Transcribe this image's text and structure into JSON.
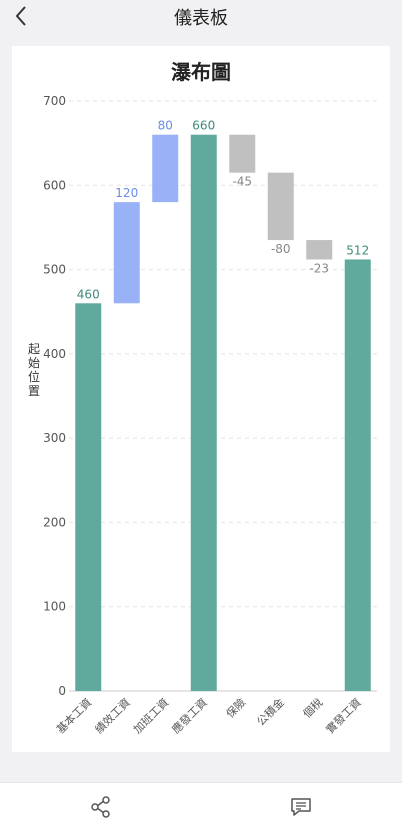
{
  "header": {
    "title": "儀表板",
    "back_icon": "chevron-left-icon"
  },
  "footer": {
    "share_icon": "share-icon",
    "comment_icon": "comment-icon"
  },
  "colors": {
    "total": "#5faa9c",
    "increase": "#98b1f7",
    "decrease": "#c0c0c0"
  },
  "chart_data": {
    "type": "bar",
    "subtype": "waterfall",
    "title": "瀑布圖",
    "xlabel": "",
    "ylabel": "起始位置",
    "ylim": [
      0,
      700
    ],
    "yticks": [
      0,
      100,
      200,
      300,
      400,
      500,
      600,
      700
    ],
    "grid": true,
    "categories": [
      "基本工資",
      "績效工資",
      "加班工資",
      "應發工資",
      "保險",
      "公積金",
      "個稅",
      "實發工資"
    ],
    "bars": [
      {
        "category": "基本工資",
        "start": 0,
        "end": 460,
        "label": "460",
        "kind": "total"
      },
      {
        "category": "績效工資",
        "start": 460,
        "end": 580,
        "label": "120",
        "kind": "increase"
      },
      {
        "category": "加班工資",
        "start": 580,
        "end": 660,
        "label": "80",
        "kind": "increase"
      },
      {
        "category": "應發工資",
        "start": 0,
        "end": 660,
        "label": "660",
        "kind": "total"
      },
      {
        "category": "保險",
        "start": 660,
        "end": 615,
        "label": "-45",
        "kind": "decrease"
      },
      {
        "category": "公積金",
        "start": 615,
        "end": 535,
        "label": "-80",
        "kind": "decrease"
      },
      {
        "category": "個稅",
        "start": 535,
        "end": 512,
        "label": "-23",
        "kind": "decrease"
      },
      {
        "category": "實發工資",
        "start": 0,
        "end": 512,
        "label": "512",
        "kind": "total"
      }
    ]
  }
}
